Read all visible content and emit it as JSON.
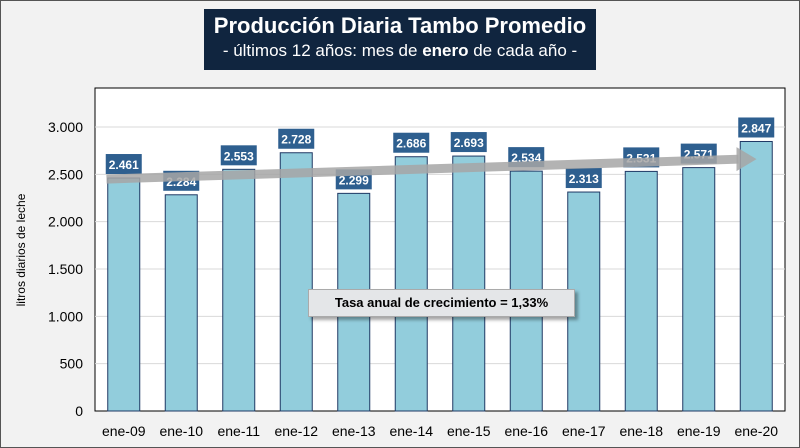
{
  "chart_data": {
    "type": "bar",
    "title": "Producción Diaria Tambo Promedio",
    "subtitle_parts": [
      "- últimos 12 años: mes de ",
      "enero",
      " de cada año -"
    ],
    "ylabel": "litros diarios de leche",
    "xlabel": "",
    "ylim": [
      0,
      3000
    ],
    "yticks": [
      0,
      500,
      1000,
      1500,
      2000,
      2500,
      3000
    ],
    "ytick_labels": [
      "0",
      "500",
      "1.000",
      "1.500",
      "2.000",
      "2.500",
      "3.000"
    ],
    "categories": [
      "ene-09",
      "ene-10",
      "ene-11",
      "ene-12",
      "ene-13",
      "ene-14",
      "ene-15",
      "ene-16",
      "ene-17",
      "ene-18",
      "ene-19",
      "ene-20"
    ],
    "values": [
      2461,
      2284,
      2553,
      2728,
      2299,
      2686,
      2693,
      2534,
      2313,
      2531,
      2571,
      2847
    ],
    "value_labels": [
      "2.461",
      "2.284",
      "2.553",
      "2.728",
      "2.299",
      "2.686",
      "2.693",
      "2.534",
      "2.313",
      "2.531",
      "2.571",
      "2.847"
    ],
    "trend": {
      "from": 2450,
      "to": 2660
    },
    "annotation": "Tasa anual de crecimiento = 1,33%",
    "grid": true,
    "colors": {
      "bar": "#92cddc",
      "bar_edge": "#1f3864",
      "label_bg": "#2e5f8f",
      "title_bg": "#10253f",
      "trend": "#a6a6a6"
    }
  }
}
